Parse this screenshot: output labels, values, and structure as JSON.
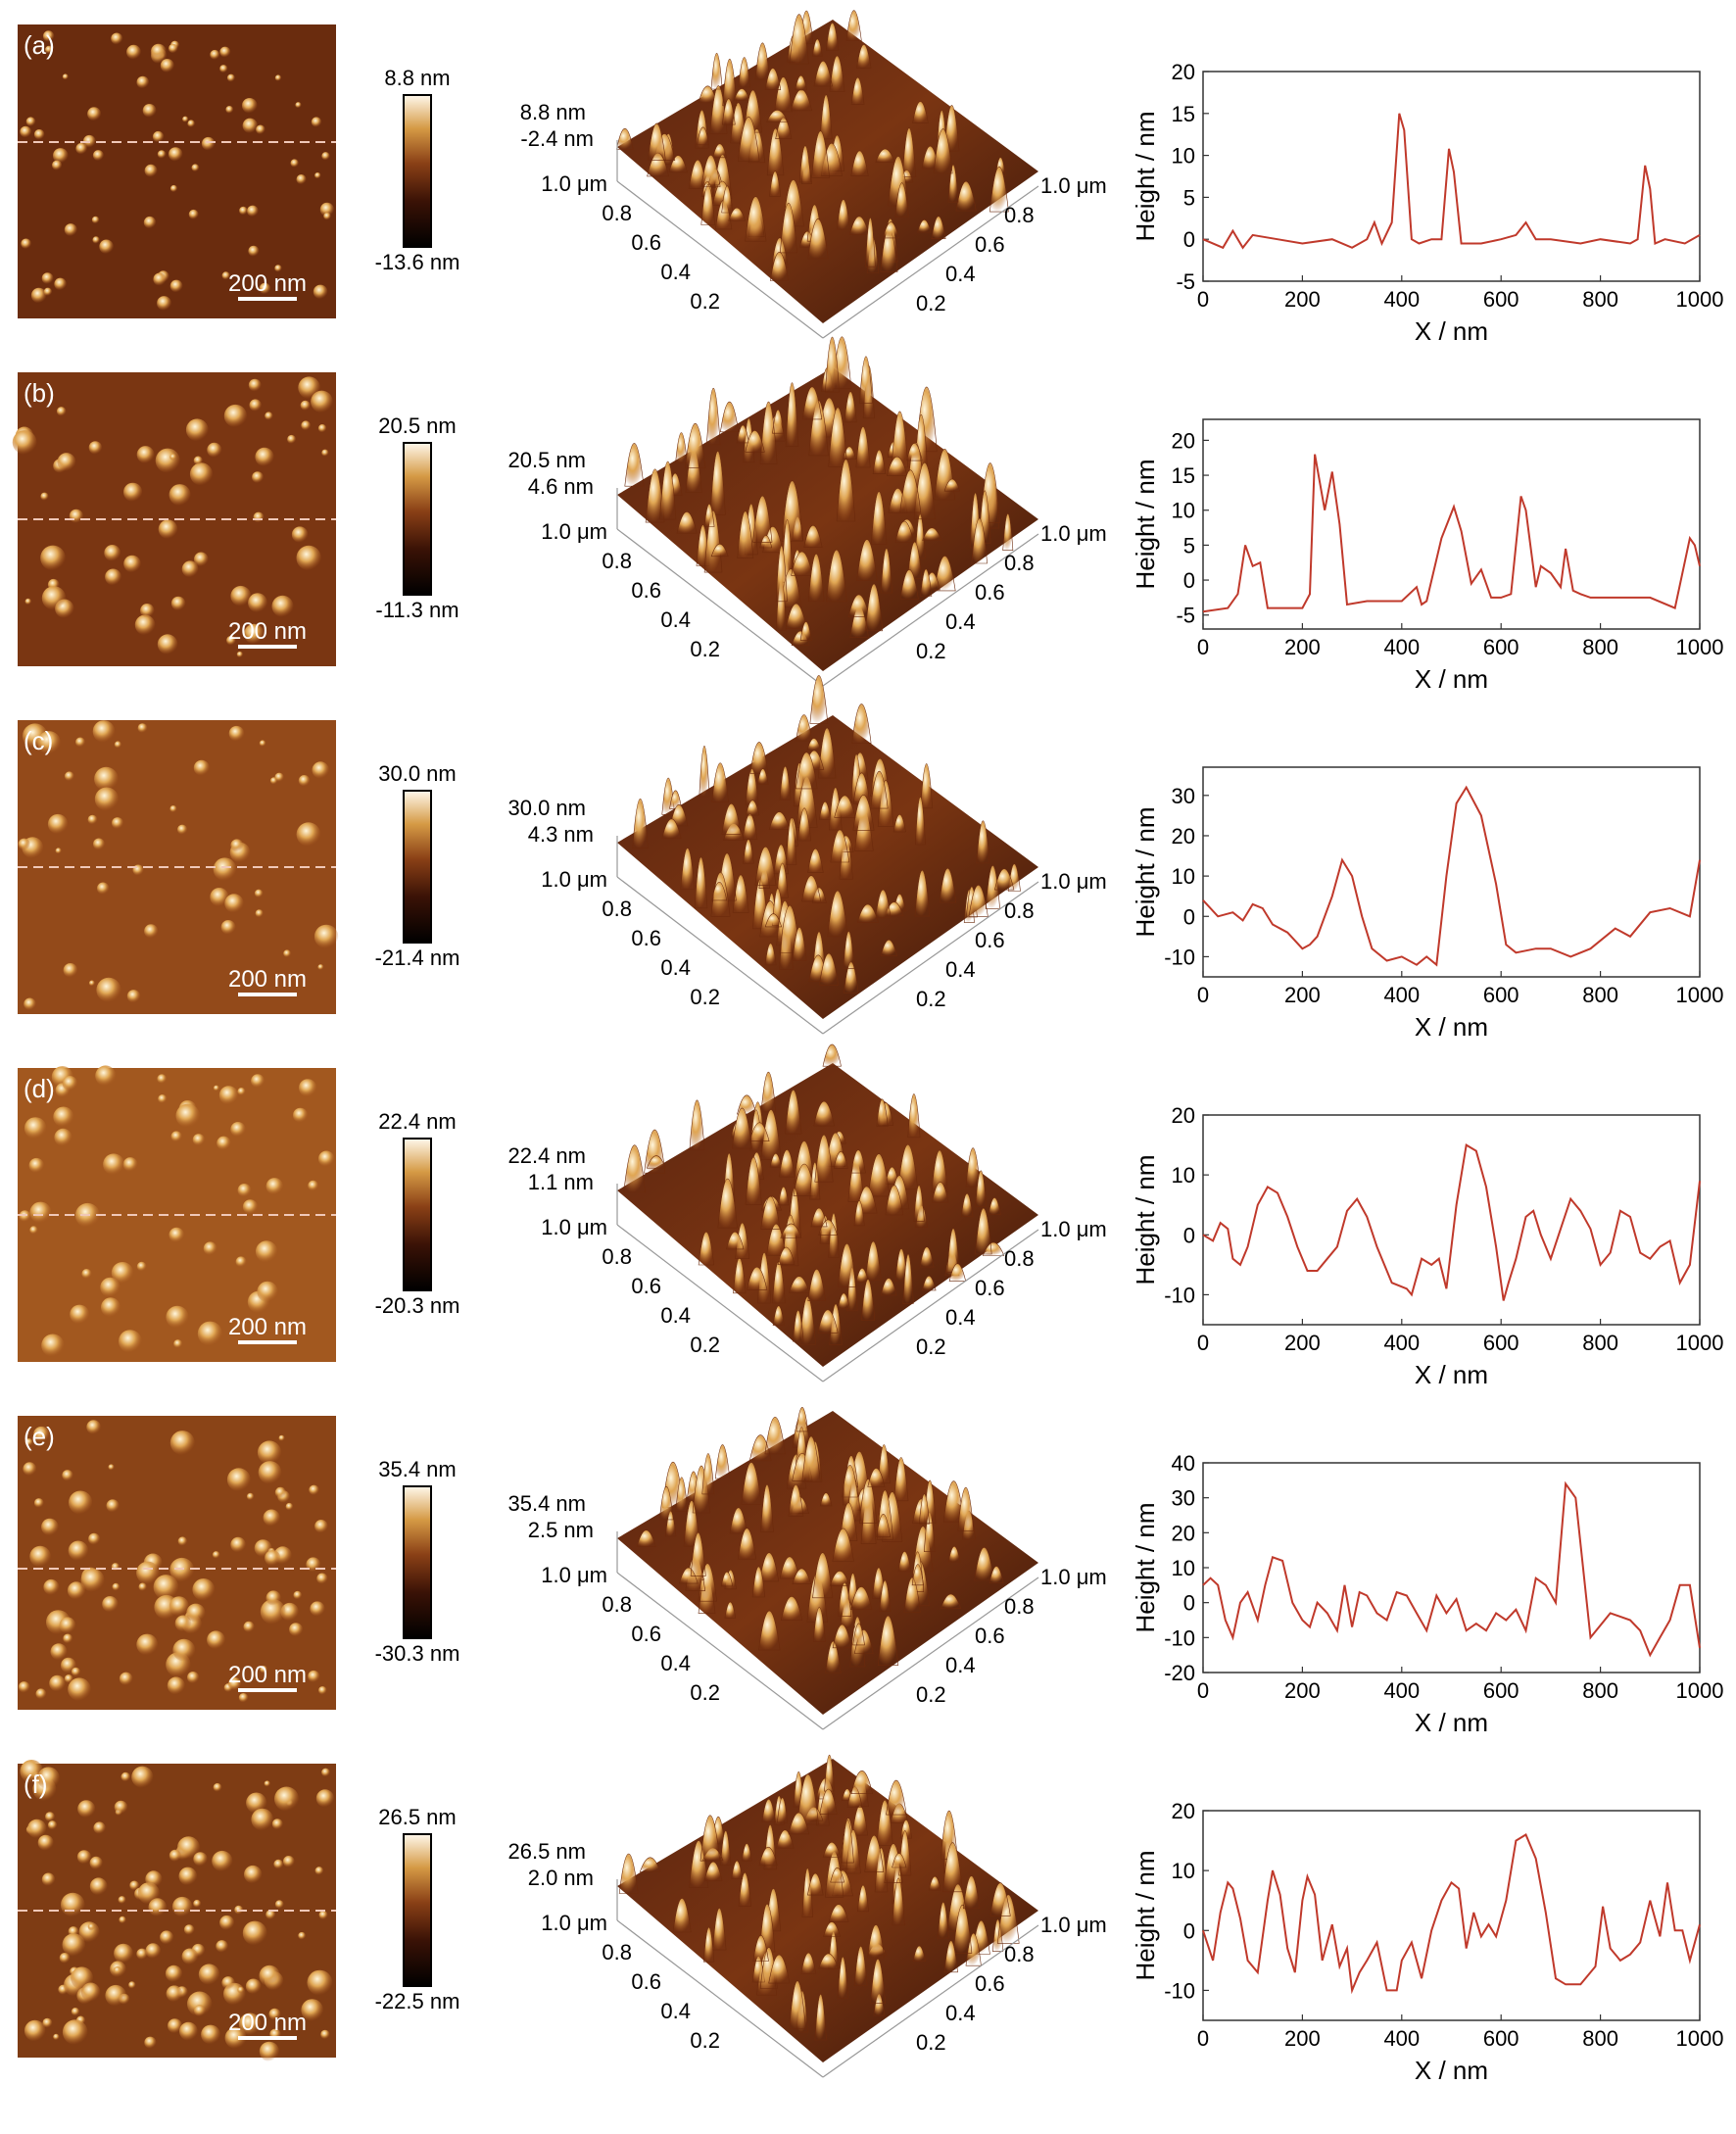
{
  "panels": [
    {
      "label": "(a)",
      "scale_bar": "200 nm",
      "colorbar": {
        "max": "8.8 nm",
        "min": "-13.6 nm"
      },
      "surface3d": {
        "z_max": "8.8 nm",
        "z_mid": "-2.4 nm",
        "left_ticks": [
          "1.0 μm",
          "0.8",
          "0.6",
          "0.4",
          "0.2"
        ],
        "right_ticks": [
          "1.0 μm",
          "0.8",
          "0.6",
          "0.4",
          "0.2"
        ]
      },
      "chart_data": {
        "type": "line",
        "xlabel": "X / nm",
        "ylabel": "Height / nm",
        "xlim": [
          0,
          1000
        ],
        "ylim": [
          -5,
          20
        ],
        "xticks": [
          0,
          200,
          400,
          600,
          800,
          1000
        ],
        "yticks": [
          -5,
          0,
          5,
          10,
          15,
          20
        ],
        "series": [
          {
            "x": [
              0,
              40,
              60,
              80,
              100,
              150,
              200,
              260,
              300,
              330,
              345,
              360,
              380,
              395,
              405,
              420,
              435,
              460,
              480,
              495,
              505,
              520,
              560,
              600,
              630,
              650,
              670,
              700,
              760,
              800,
              860,
              875,
              890,
              900,
              910,
              930,
              970,
              1000
            ],
            "y": [
              0,
              -1,
              1,
              -1,
              0.5,
              0,
              -0.5,
              0,
              -1,
              0,
              2,
              -0.5,
              2,
              15,
              13,
              0,
              -0.5,
              0,
              0,
              10.8,
              8,
              -0.5,
              -0.5,
              0,
              0.5,
              2,
              0,
              0,
              -0.5,
              0,
              -0.5,
              0,
              8.8,
              6,
              -0.5,
              0,
              -0.5,
              0.5
            ]
          }
        ]
      }
    },
    {
      "label": "(b)",
      "scale_bar": "200 nm",
      "colorbar": {
        "max": "20.5 nm",
        "min": "-11.3 nm"
      },
      "surface3d": {
        "z_max": "20.5 nm",
        "z_mid": "4.6 nm",
        "left_ticks": [
          "1.0 μm",
          "0.8",
          "0.6",
          "0.4",
          "0.2"
        ],
        "right_ticks": [
          "1.0 μm",
          "0.8",
          "0.6",
          "0.4",
          "0.2"
        ]
      },
      "chart_data": {
        "type": "line",
        "xlabel": "X / nm",
        "ylabel": "Height / nm",
        "xlim": [
          0,
          1000
        ],
        "ylim": [
          -7,
          23
        ],
        "xticks": [
          0,
          200,
          400,
          600,
          800,
          1000
        ],
        "yticks": [
          -5,
          0,
          5,
          10,
          15,
          20
        ],
        "series": [
          {
            "x": [
              0,
              50,
              70,
              85,
              100,
              115,
              130,
              200,
              215,
              225,
              245,
              260,
              275,
              290,
              330,
              400,
              430,
              440,
              450,
              480,
              505,
              520,
              540,
              560,
              580,
              600,
              620,
              640,
              650,
              670,
              680,
              700,
              720,
              730,
              745,
              760,
              780,
              850,
              900,
              950,
              980,
              990,
              1000
            ],
            "y": [
              -4.5,
              -4,
              -2,
              5,
              2,
              2.5,
              -4,
              -4,
              -2,
              18,
              10,
              15.5,
              8,
              -3.5,
              -3,
              -3,
              -1,
              -3.5,
              -3,
              6,
              10.5,
              7,
              -0.5,
              1.5,
              -2.5,
              -2.5,
              -2,
              12,
              10,
              -1,
              2,
              1,
              -1,
              4.5,
              -1.5,
              -2,
              -2.5,
              -2.5,
              -2.5,
              -4,
              6,
              5,
              2
            ]
          }
        ]
      }
    },
    {
      "label": "(c)",
      "scale_bar": "200 nm",
      "colorbar": {
        "max": "30.0 nm",
        "min": "-21.4 nm"
      },
      "surface3d": {
        "z_max": "30.0 nm",
        "z_mid": "4.3 nm",
        "left_ticks": [
          "1.0 μm",
          "0.8",
          "0.6",
          "0.4",
          "0.2"
        ],
        "right_ticks": [
          "1.0 μm",
          "0.8",
          "0.6",
          "0.4",
          "0.2"
        ]
      },
      "chart_data": {
        "type": "line",
        "xlabel": "X / nm",
        "ylabel": "Height / nm",
        "xlim": [
          0,
          1000
        ],
        "ylim": [
          -15,
          37
        ],
        "xticks": [
          0,
          200,
          400,
          600,
          800,
          1000
        ],
        "yticks": [
          -10,
          0,
          10,
          20,
          30
        ],
        "series": [
          {
            "x": [
              0,
              30,
              60,
              80,
              100,
              120,
              140,
              170,
              200,
              215,
              230,
              260,
              280,
              300,
              320,
              340,
              370,
              400,
              430,
              450,
              470,
              490,
              510,
              530,
              560,
              590,
              610,
              630,
              670,
              700,
              740,
              780,
              830,
              860,
              900,
              940,
              980,
              1000
            ],
            "y": [
              4,
              0,
              1,
              -1,
              3,
              2,
              -2,
              -4,
              -8,
              -7,
              -5,
              5,
              14,
              10,
              0,
              -8,
              -11,
              -10,
              -12,
              -10,
              -12,
              10,
              28,
              32,
              25,
              8,
              -7,
              -9,
              -8,
              -8,
              -10,
              -8,
              -3,
              -5,
              1,
              2,
              0,
              14
            ]
          }
        ]
      }
    },
    {
      "label": "(d)",
      "scale_bar": "200 nm",
      "colorbar": {
        "max": "22.4 nm",
        "min": "-20.3 nm"
      },
      "surface3d": {
        "z_max": "22.4 nm",
        "z_mid": "1.1 nm",
        "left_ticks": [
          "1.0 μm",
          "0.8",
          "0.6",
          "0.4",
          "0.2"
        ],
        "right_ticks": [
          "1.0 μm",
          "0.8",
          "0.6",
          "0.4",
          "0.2"
        ]
      },
      "chart_data": {
        "type": "line",
        "xlabel": "X / nm",
        "ylabel": "Height / nm",
        "xlim": [
          0,
          1000
        ],
        "ylim": [
          -15,
          20
        ],
        "xticks": [
          0,
          200,
          400,
          600,
          800,
          1000
        ],
        "yticks": [
          -10,
          0,
          10,
          20
        ],
        "series": [
          {
            "x": [
              0,
              20,
              35,
              50,
              60,
              75,
              90,
              110,
              130,
              150,
              170,
              190,
              210,
              230,
              250,
              270,
              290,
              310,
              330,
              350,
              380,
              410,
              420,
              440,
              460,
              475,
              490,
              510,
              530,
              550,
              570,
              590,
              605,
              615,
              630,
              650,
              665,
              680,
              700,
              720,
              740,
              760,
              780,
              800,
              820,
              840,
              860,
              880,
              900,
              920,
              940,
              960,
              980,
              1000
            ],
            "y": [
              0,
              -1,
              2,
              1,
              -4,
              -5,
              -2,
              5,
              8,
              7,
              3,
              -2,
              -6,
              -6,
              -4,
              -2,
              4,
              6,
              3,
              -2,
              -8,
              -9,
              -10,
              -4,
              -5,
              -4,
              -9,
              5,
              15,
              14,
              8,
              -2,
              -11,
              -8,
              -4,
              3,
              4,
              0,
              -4,
              1,
              6,
              4,
              1,
              -5,
              -3,
              4,
              3,
              -3,
              -4,
              -2,
              -1,
              -8,
              -5,
              9
            ]
          }
        ]
      }
    },
    {
      "label": "(e)",
      "scale_bar": "200 nm",
      "colorbar": {
        "max": "35.4 nm",
        "min": "-30.3 nm"
      },
      "surface3d": {
        "z_max": "35.4 nm",
        "z_mid": "2.5 nm",
        "left_ticks": [
          "1.0 μm",
          "0.8",
          "0.6",
          "0.4",
          "0.2"
        ],
        "right_ticks": [
          "1.0 μm",
          "0.8",
          "0.6",
          "0.4",
          "0.2"
        ]
      },
      "chart_data": {
        "type": "line",
        "xlabel": "X / nm",
        "ylabel": "Height / nm",
        "xlim": [
          0,
          1000
        ],
        "ylim": [
          -20,
          40
        ],
        "xticks": [
          0,
          200,
          400,
          600,
          800,
          1000
        ],
        "yticks": [
          -20,
          -10,
          0,
          10,
          20,
          30,
          40
        ],
        "series": [
          {
            "x": [
              0,
              15,
              30,
              45,
              60,
              75,
              90,
              110,
              125,
              140,
              160,
              180,
              200,
              215,
              230,
              250,
              270,
              285,
              300,
              315,
              330,
              350,
              370,
              390,
              410,
              430,
              450,
              470,
              490,
              510,
              530,
              550,
              570,
              590,
              610,
              630,
              650,
              670,
              690,
              710,
              730,
              750,
              780,
              820,
              860,
              880,
              900,
              920,
              940,
              960,
              980,
              1000
            ],
            "y": [
              5,
              7,
              5,
              -5,
              -10,
              0,
              3,
              -5,
              5,
              13,
              12,
              0,
              -5,
              -7,
              0,
              -3,
              -8,
              5,
              -7,
              3,
              2,
              -3,
              -5,
              3,
              2,
              -3,
              -8,
              2,
              -3,
              1,
              -8,
              -6,
              -8,
              -3,
              -5,
              -2,
              -8,
              7,
              5,
              0,
              34,
              30,
              -10,
              -3,
              -5,
              -8,
              -15,
              -10,
              -5,
              5,
              5,
              -13
            ]
          }
        ]
      }
    },
    {
      "label": "(f)",
      "scale_bar": "200 nm",
      "colorbar": {
        "max": "26.5 nm",
        "min": "-22.5 nm"
      },
      "surface3d": {
        "z_max": "26.5 nm",
        "z_mid": "2.0 nm",
        "left_ticks": [
          "1.0 μm",
          "0.8",
          "0.6",
          "0.4",
          "0.2"
        ],
        "right_ticks": [
          "1.0 μm",
          "0.8",
          "0.6",
          "0.4",
          "0.2"
        ]
      },
      "chart_data": {
        "type": "line",
        "xlabel": "X / nm",
        "ylabel": "Height / nm",
        "xlim": [
          0,
          1000
        ],
        "ylim": [
          -15,
          20
        ],
        "xticks": [
          0,
          200,
          400,
          600,
          800,
          1000
        ],
        "yticks": [
          -10,
          0,
          10,
          20
        ],
        "series": [
          {
            "x": [
              0,
              20,
              35,
              50,
              60,
              75,
              90,
              110,
              130,
              140,
              155,
              170,
              185,
              200,
              210,
              225,
              240,
              260,
              275,
              290,
              300,
              315,
              330,
              350,
              370,
              390,
              400,
              420,
              440,
              460,
              480,
              500,
              515,
              530,
              545,
              560,
              575,
              590,
              610,
              630,
              650,
              670,
              690,
              710,
              730,
              760,
              790,
              805,
              820,
              840,
              860,
              880,
              900,
              920,
              935,
              950,
              965,
              980,
              1000
            ],
            "y": [
              0,
              -5,
              3,
              8,
              7,
              2,
              -5,
              -7,
              5,
              10,
              6,
              -3,
              -7,
              5,
              9,
              6,
              -5,
              1,
              -6,
              -3,
              -10,
              -7,
              -5,
              -2,
              -10,
              -10,
              -5,
              -2,
              -8,
              0,
              5,
              8,
              7,
              -3,
              3,
              -1,
              1,
              -1,
              5,
              15,
              16,
              12,
              3,
              -8,
              -9,
              -9,
              -6,
              4,
              -3,
              -5,
              -4,
              -2,
              5,
              -1,
              8,
              0,
              0,
              -5,
              1
            ]
          }
        ]
      }
    }
  ]
}
